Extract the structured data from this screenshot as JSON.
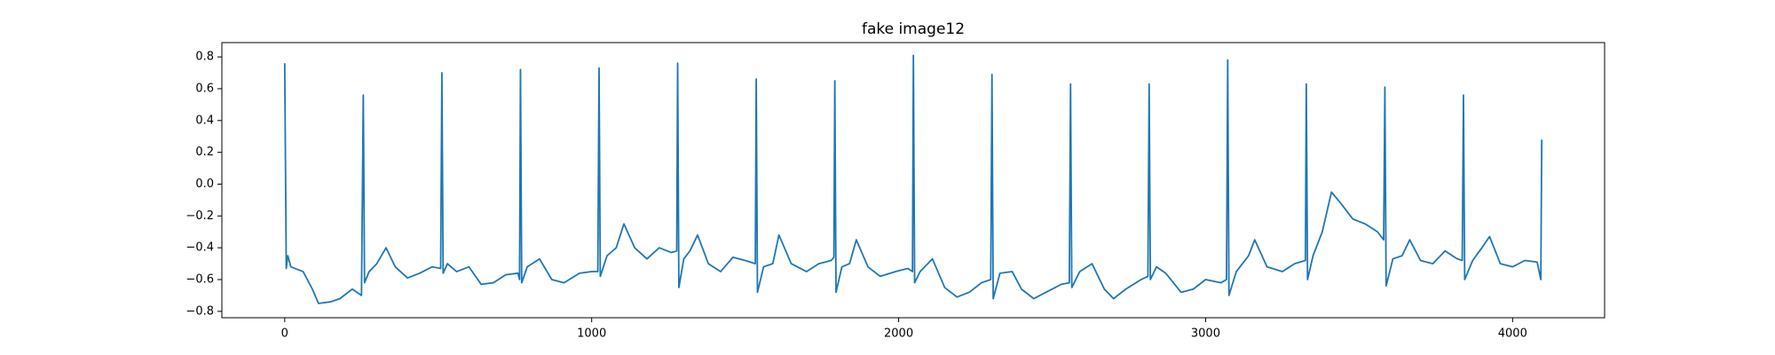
{
  "chart_data": {
    "type": "line",
    "title": "fake image12",
    "xlim": [
      -204.75,
      4299.75
    ],
    "ylim": [
      -0.84,
      0.89
    ],
    "xticks": [
      0,
      1000,
      2000,
      3000,
      4000
    ],
    "yticks": [
      {
        "value": -0.8,
        "label": "−0.8"
      },
      {
        "value": -0.6,
        "label": "−0.6"
      },
      {
        "value": -0.4,
        "label": "−0.4"
      },
      {
        "value": -0.2,
        "label": "−0.2"
      },
      {
        "value": 0,
        "label": "0.0"
      },
      0.2,
      0.4,
      0.6,
      0.8
    ],
    "series": [
      {
        "color": "#1f77b4",
        "x": [
          0,
          5,
          10,
          20,
          60,
          90,
          110,
          150,
          180,
          220,
          250,
          256,
          260,
          275,
          300,
          330,
          360,
          400,
          440,
          480,
          508,
          512,
          516,
          530,
          560,
          600,
          640,
          680,
          720,
          760,
          765,
          768,
          772,
          790,
          830,
          870,
          910,
          960,
          1000,
          1020,
          1024,
          1028,
          1050,
          1080,
          1105,
          1140,
          1180,
          1220,
          1260,
          1277,
          1280,
          1284,
          1300,
          1320,
          1345,
          1380,
          1420,
          1460,
          1500,
          1533,
          1536,
          1540,
          1560,
          1590,
          1610,
          1650,
          1700,
          1740,
          1780,
          1789,
          1792,
          1796,
          1815,
          1840,
          1862,
          1900,
          1940,
          1990,
          2030,
          2045,
          2048,
          2052,
          2070,
          2110,
          2150,
          2190,
          2230,
          2270,
          2300,
          2304,
          2308,
          2330,
          2370,
          2400,
          2440,
          2480,
          2530,
          2556,
          2560,
          2564,
          2590,
          2630,
          2670,
          2700,
          2740,
          2790,
          2812,
          2816,
          2820,
          2840,
          2870,
          2920,
          2960,
          3000,
          3050,
          3068,
          3072,
          3076,
          3100,
          3140,
          3160,
          3200,
          3250,
          3290,
          3325,
          3328,
          3332,
          3350,
          3380,
          3410,
          3440,
          3480,
          3520,
          3560,
          3580,
          3584,
          3588,
          3610,
          3640,
          3665,
          3700,
          3740,
          3780,
          3820,
          3836,
          3840,
          3844,
          3870,
          3900,
          3925,
          3960,
          4000,
          4040,
          4080,
          4092,
          4095
        ],
        "values": [
          0.76,
          -0.53,
          -0.45,
          -0.52,
          -0.55,
          -0.66,
          -0.75,
          -0.74,
          -0.72,
          -0.66,
          -0.7,
          0.56,
          -0.62,
          -0.55,
          -0.5,
          -0.4,
          -0.52,
          -0.59,
          -0.56,
          -0.52,
          -0.53,
          0.7,
          -0.56,
          -0.5,
          -0.55,
          -0.52,
          -0.63,
          -0.62,
          -0.57,
          -0.56,
          -0.6,
          0.72,
          -0.62,
          -0.52,
          -0.47,
          -0.6,
          -0.62,
          -0.56,
          -0.55,
          -0.55,
          0.73,
          -0.58,
          -0.45,
          -0.4,
          -0.25,
          -0.4,
          -0.47,
          -0.4,
          -0.43,
          -0.42,
          0.76,
          -0.65,
          -0.47,
          -0.42,
          -0.32,
          -0.5,
          -0.55,
          -0.46,
          -0.48,
          -0.5,
          0.66,
          -0.68,
          -0.52,
          -0.5,
          -0.32,
          -0.5,
          -0.55,
          -0.5,
          -0.48,
          -0.46,
          0.65,
          -0.68,
          -0.52,
          -0.5,
          -0.35,
          -0.52,
          -0.58,
          -0.55,
          -0.53,
          -0.55,
          0.81,
          -0.62,
          -0.55,
          -0.47,
          -0.65,
          -0.71,
          -0.68,
          -0.62,
          -0.6,
          0.69,
          -0.72,
          -0.56,
          -0.55,
          -0.66,
          -0.72,
          -0.68,
          -0.63,
          -0.62,
          0.63,
          -0.65,
          -0.55,
          -0.5,
          -0.66,
          -0.72,
          -0.66,
          -0.6,
          -0.58,
          0.63,
          -0.6,
          -0.52,
          -0.56,
          -0.68,
          -0.66,
          -0.6,
          -0.62,
          -0.6,
          0.78,
          -0.7,
          -0.55,
          -0.45,
          -0.35,
          -0.52,
          -0.55,
          -0.5,
          -0.48,
          0.63,
          -0.6,
          -0.45,
          -0.3,
          -0.05,
          -0.12,
          -0.22,
          -0.25,
          -0.3,
          -0.35,
          0.61,
          -0.64,
          -0.47,
          -0.45,
          -0.35,
          -0.48,
          -0.5,
          -0.42,
          -0.47,
          -0.48,
          0.56,
          -0.6,
          -0.48,
          -0.4,
          -0.33,
          -0.5,
          -0.52,
          -0.48,
          -0.49,
          -0.6,
          0.28
        ]
      }
    ]
  }
}
